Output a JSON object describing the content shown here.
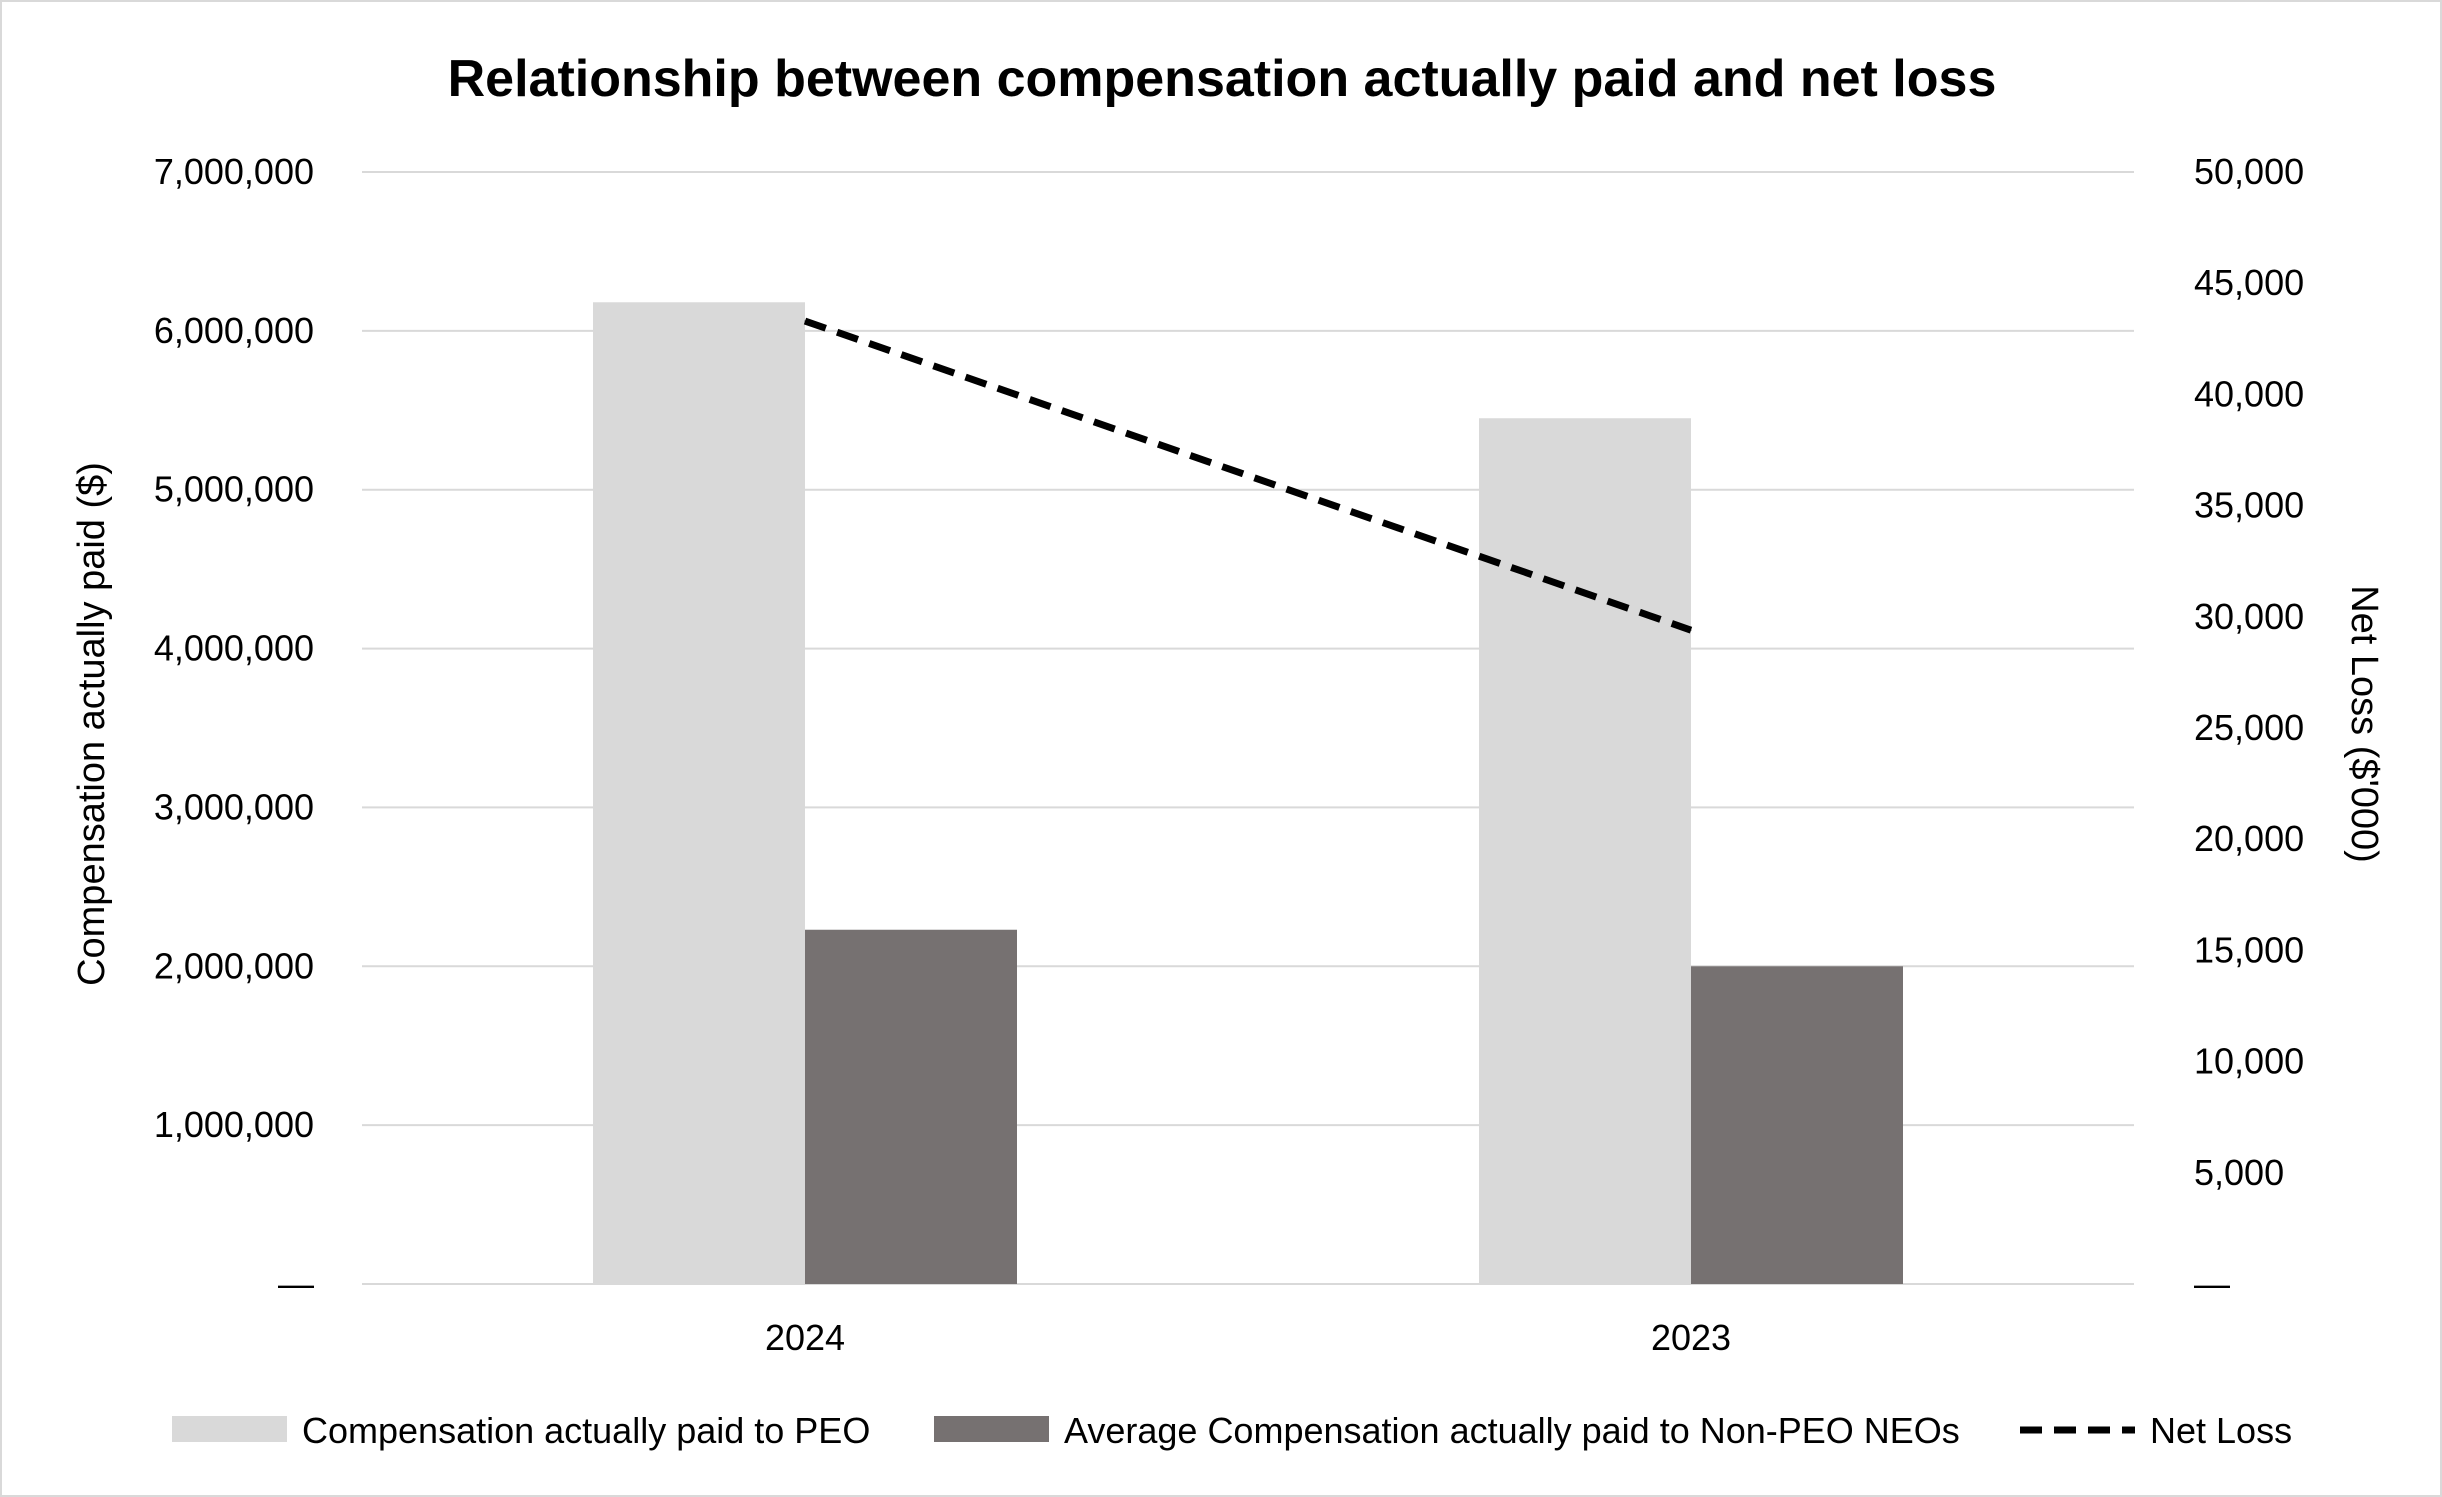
{
  "chart_data": {
    "type": "bar",
    "title": "Relationship between compensation actually paid and net loss",
    "categories": [
      "2024",
      "2023"
    ],
    "y_left": {
      "label": "Compensation actually paid ($)",
      "range": [
        0,
        7000000
      ],
      "ticks": [
        0,
        1000000,
        2000000,
        3000000,
        4000000,
        5000000,
        6000000,
        7000000
      ],
      "tick_labels": [
        "—",
        "1,000,000",
        "2,000,000",
        "3,000,000",
        "4,000,000",
        "5,000,000",
        "6,000,000",
        "7,000,000"
      ]
    },
    "y_right": {
      "label": "Net Loss ($'000)",
      "range": [
        0,
        50000
      ],
      "ticks": [
        0,
        5000,
        10000,
        15000,
        20000,
        25000,
        30000,
        35000,
        40000,
        45000,
        50000
      ],
      "tick_labels": [
        "—",
        "5,000",
        "10,000",
        "15,000",
        "20,000",
        "25,000",
        "30,000",
        "35,000",
        "40,000",
        "45,000",
        "50,000"
      ]
    },
    "grid": true,
    "legend_position": "bottom",
    "series": [
      {
        "name": "Compensation actually paid to PEO",
        "kind": "bar",
        "axis": "left",
        "color": "#d9d9d9",
        "values": [
          6180000,
          5450000
        ]
      },
      {
        "name": "Average Compensation actually paid to Non-PEO NEOs",
        "kind": "bar",
        "axis": "left",
        "color": "#767171",
        "values": [
          2230000,
          2000000
        ]
      },
      {
        "name": "Net Loss",
        "kind": "line",
        "style": "dashed",
        "axis": "right",
        "color": "#000000",
        "values": [
          43300,
          29400
        ]
      }
    ]
  }
}
